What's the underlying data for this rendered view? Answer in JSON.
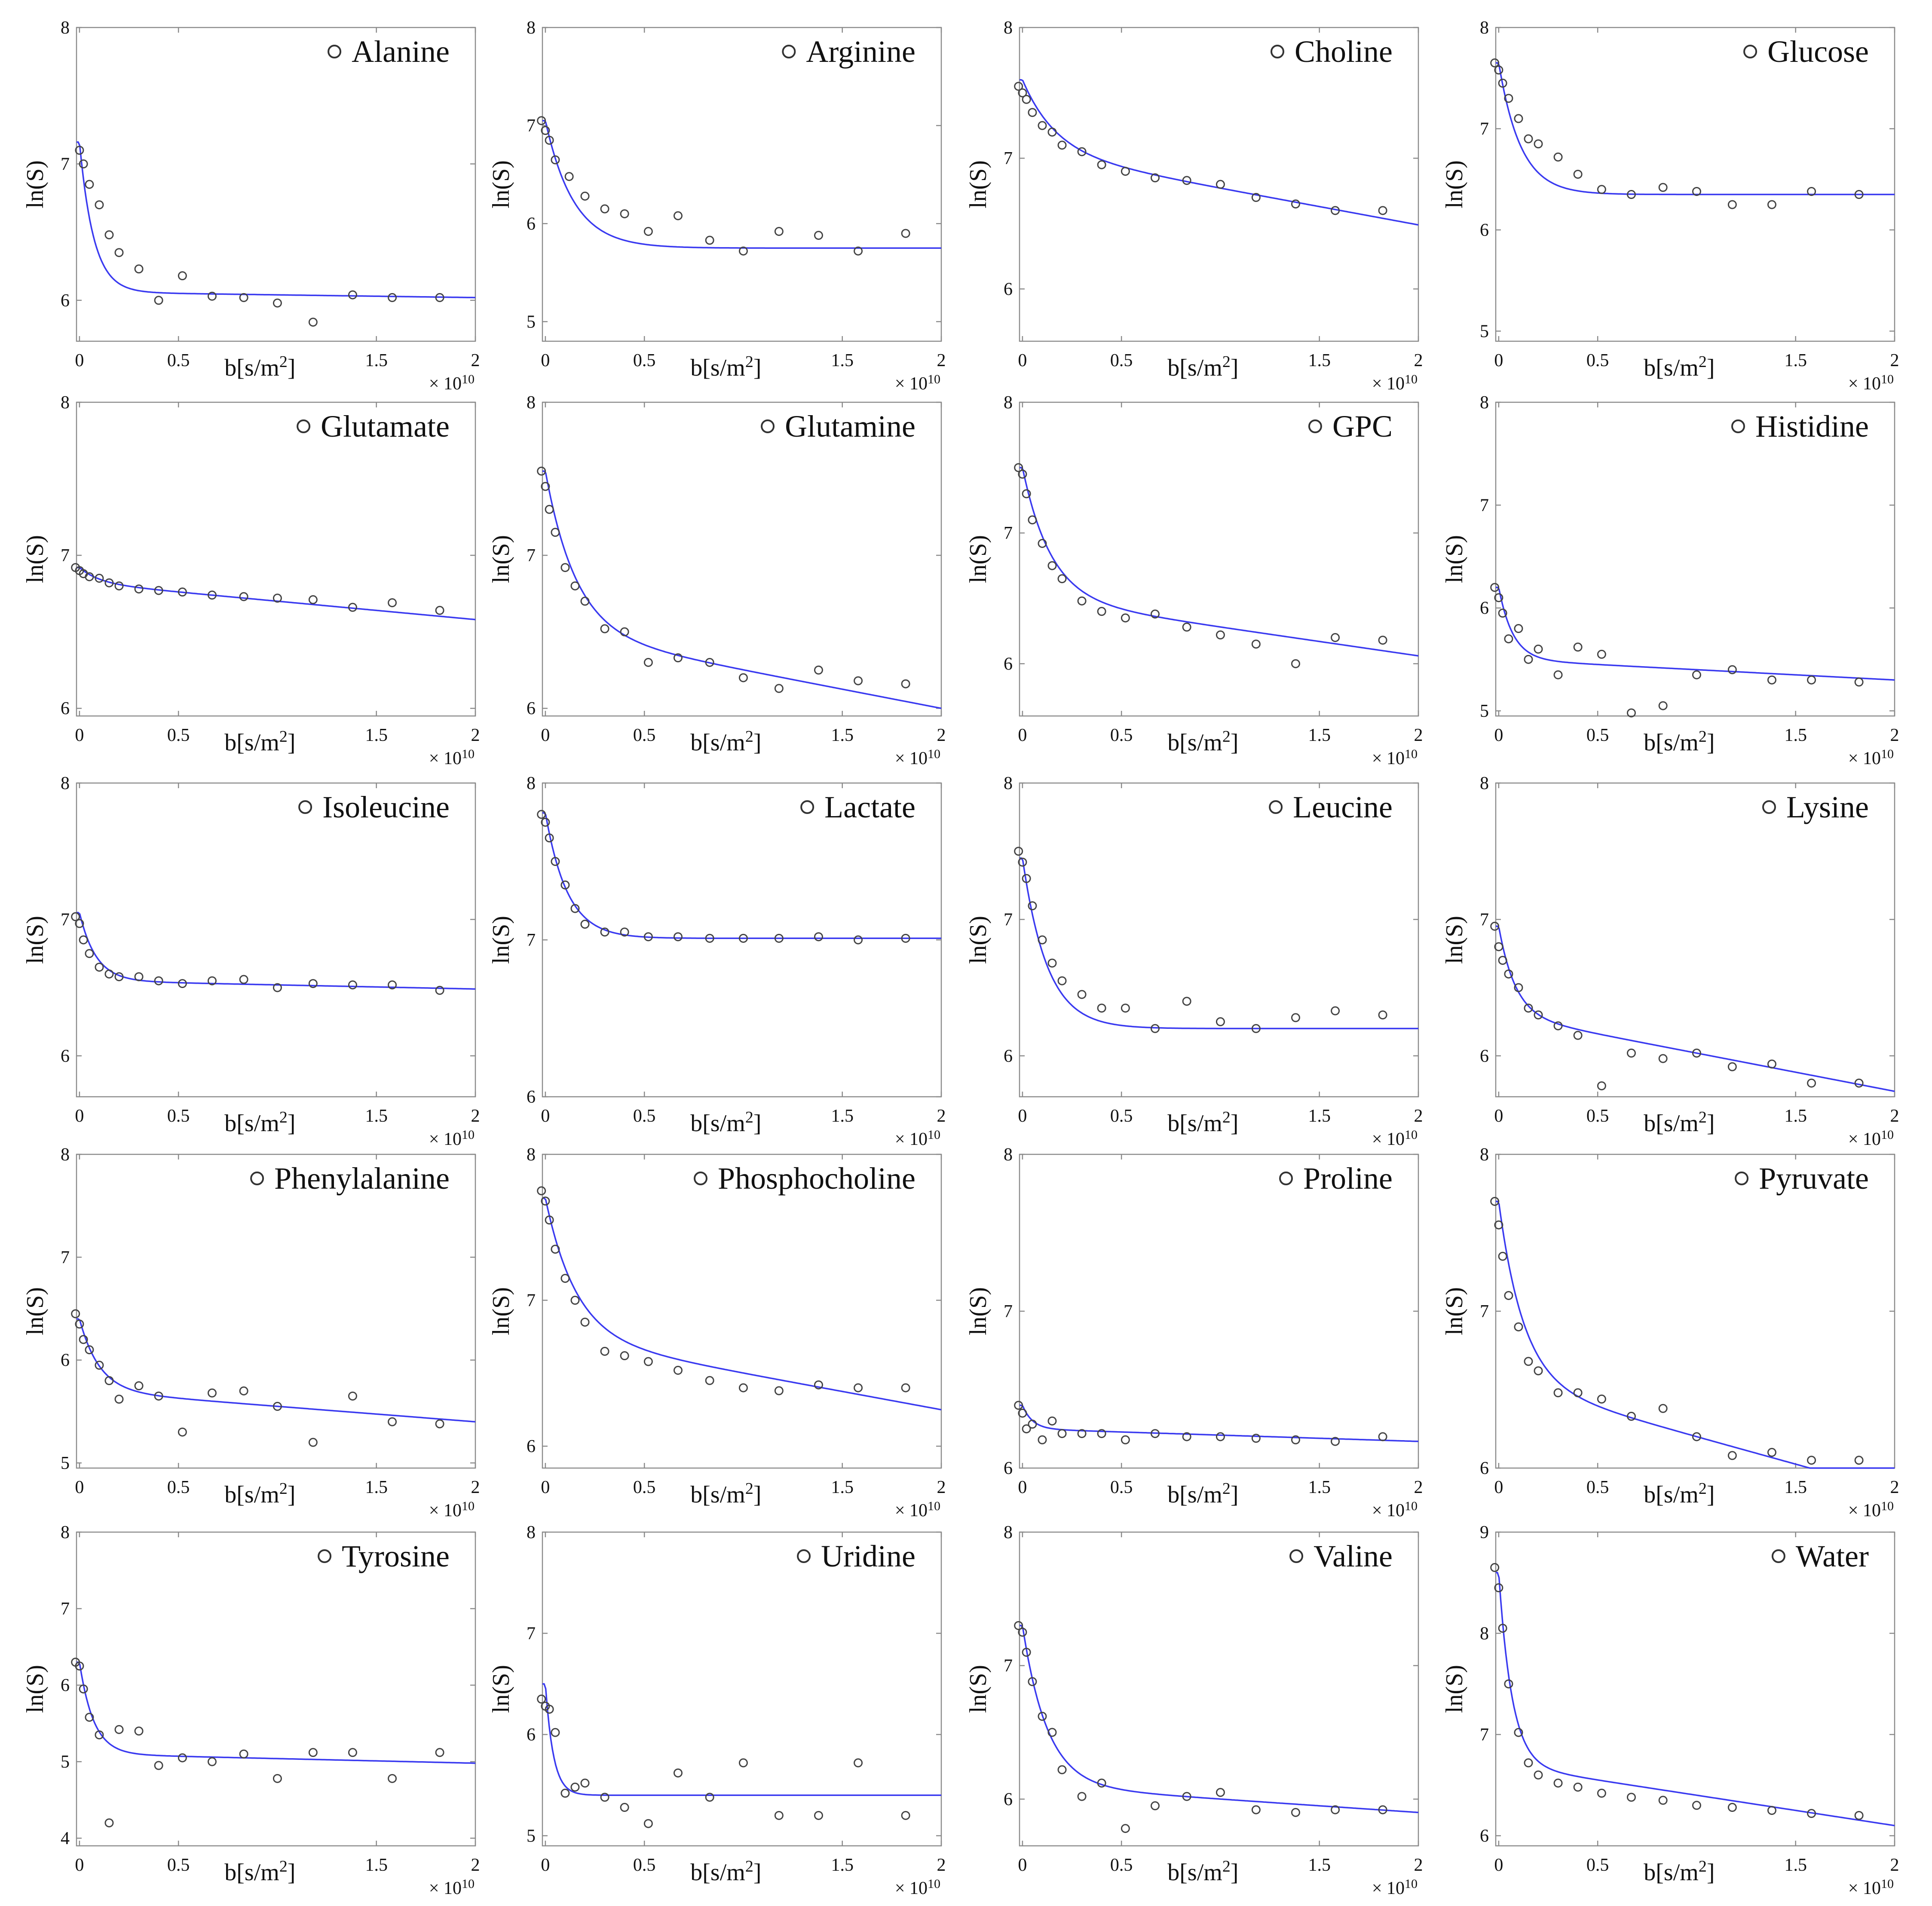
{
  "figure": {
    "xlabel": "b[s/m2]",
    "xlabel_main": "b[s/m",
    "xlabel_sup": "2",
    "xlabel_tail": "]",
    "ylabel": "ln(S)",
    "x_multiplier": "× 10",
    "x_multiplier_exp": "10",
    "x_ticks": [
      "0",
      "0.5",
      "1.5",
      "2"
    ],
    "colors": {
      "fit": "#3a3af0",
      "points": "#444444",
      "frame": "#8a8a8a"
    }
  },
  "chart_data": [
    {
      "type": "scatter",
      "title": "Alanine",
      "ylim": [
        5.7,
        8
      ],
      "yticks": [
        "6",
        "7",
        "8"
      ],
      "fit_model": {
        "a": 1.1,
        "k": 14,
        "c": 7.16,
        "m": 0.02
      },
      "x": [
        0,
        0.02,
        0.05,
        0.1,
        0.15,
        0.2,
        0.3,
        0.4,
        0.52,
        0.67,
        0.83,
        1.0,
        1.18,
        1.38,
        1.58,
        1.82
      ],
      "y": [
        7.1,
        7.0,
        6.85,
        6.7,
        6.48,
        6.35,
        6.23,
        6.0,
        6.18,
        6.03,
        6.02,
        5.98,
        5.84,
        6.04,
        6.02,
        6.02
      ]
    },
    {
      "type": "scatter",
      "title": "Arginine",
      "ylim": [
        4.8,
        8
      ],
      "yticks": [
        "5",
        "6",
        "7",
        "8"
      ],
      "fit_model": {
        "a": 1.3,
        "k": 7,
        "c": 7.05,
        "m": 0
      },
      "x": [
        -0.02,
        0,
        0.02,
        0.05,
        0.12,
        0.2,
        0.3,
        0.4,
        0.52,
        0.67,
        0.83,
        1.0,
        1.18,
        1.38,
        1.58,
        1.82
      ],
      "y": [
        7.05,
        6.95,
        6.85,
        6.65,
        6.48,
        6.28,
        6.15,
        6.1,
        5.92,
        6.08,
        5.83,
        5.72,
        5.92,
        5.88,
        5.72,
        5.9
      ]
    },
    {
      "type": "scatter",
      "title": "Choline",
      "ylim": [
        5.6,
        8
      ],
      "yticks": [
        "6",
        "7",
        "8"
      ],
      "fit_model": {
        "a": 0.55,
        "k": 6,
        "c": 7.6,
        "m": 0.28
      },
      "x": [
        -0.02,
        0,
        0.02,
        0.05,
        0.1,
        0.15,
        0.2,
        0.3,
        0.4,
        0.52,
        0.67,
        0.83,
        1.0,
        1.18,
        1.38,
        1.58,
        1.82
      ],
      "y": [
        7.55,
        7.5,
        7.45,
        7.35,
        7.25,
        7.2,
        7.1,
        7.05,
        6.95,
        6.9,
        6.85,
        6.83,
        6.8,
        6.7,
        6.65,
        6.6,
        6.6
      ]
    },
    {
      "type": "scatter",
      "title": "Glucose",
      "ylim": [
        4.9,
        8
      ],
      "yticks": [
        "5",
        "6",
        "7",
        "8"
      ],
      "fit_model": {
        "a": 1.3,
        "k": 9,
        "c": 7.65,
        "m": 0
      },
      "x": [
        -0.02,
        0,
        0.02,
        0.05,
        0.1,
        0.15,
        0.2,
        0.3,
        0.4,
        0.52,
        0.67,
        0.83,
        1.0,
        1.18,
        1.38,
        1.58,
        1.82
      ],
      "y": [
        7.65,
        7.58,
        7.45,
        7.3,
        7.1,
        6.9,
        6.85,
        6.72,
        6.55,
        6.4,
        6.35,
        6.42,
        6.38,
        6.25,
        6.25,
        6.38,
        6.35
      ]
    },
    {
      "type": "scatter",
      "title": "Glutamate",
      "ylim": [
        5.95,
        8
      ],
      "yticks": [
        "6",
        "7",
        "8"
      ],
      "fit_model": {
        "a": 0.1,
        "k": 10,
        "c": 6.92,
        "m": 0.12
      },
      "x": [
        -0.02,
        0,
        0.02,
        0.05,
        0.1,
        0.15,
        0.2,
        0.3,
        0.4,
        0.52,
        0.67,
        0.83,
        1.0,
        1.18,
        1.38,
        1.58,
        1.82
      ],
      "y": [
        6.92,
        6.9,
        6.88,
        6.86,
        6.85,
        6.82,
        6.8,
        6.78,
        6.77,
        6.76,
        6.74,
        6.73,
        6.72,
        6.71,
        6.66,
        6.69,
        6.64
      ]
    },
    {
      "type": "scatter",
      "title": "Glutamine",
      "ylim": [
        5.95,
        8
      ],
      "yticks": [
        "6",
        "7",
        "8"
      ],
      "fit_model": {
        "a": 1.05,
        "k": 6.5,
        "c": 7.55,
        "m": 0.25
      },
      "x": [
        -0.02,
        0,
        0.02,
        0.05,
        0.1,
        0.15,
        0.2,
        0.3,
        0.4,
        0.52,
        0.67,
        0.83,
        1.0,
        1.18,
        1.38,
        1.58,
        1.82
      ],
      "y": [
        7.55,
        7.45,
        7.3,
        7.15,
        6.92,
        6.8,
        6.7,
        6.52,
        6.5,
        6.3,
        6.33,
        6.3,
        6.2,
        6.13,
        6.25,
        6.18,
        6.16
      ]
    },
    {
      "type": "scatter",
      "title": "GPC",
      "ylim": [
        5.6,
        8
      ],
      "yticks": [
        "6",
        "7",
        "8"
      ],
      "fit_model": {
        "a": 1.0,
        "k": 7,
        "c": 7.5,
        "m": 0.22
      },
      "x": [
        -0.02,
        0,
        0.02,
        0.05,
        0.1,
        0.15,
        0.2,
        0.3,
        0.4,
        0.52,
        0.67,
        0.83,
        1.0,
        1.18,
        1.38,
        1.58,
        1.82
      ],
      "y": [
        7.5,
        7.45,
        7.3,
        7.1,
        6.92,
        6.75,
        6.65,
        6.48,
        6.4,
        6.35,
        6.38,
        6.28,
        6.22,
        6.15,
        6.0,
        6.2,
        6.18
      ]
    },
    {
      "type": "scatter",
      "title": "Histidine",
      "ylim": [
        4.95,
        8
      ],
      "yticks": [
        "5",
        "6",
        "7",
        "8"
      ],
      "fit_model": {
        "a": 0.7,
        "k": 14,
        "c": 6.2,
        "m": 0.1
      },
      "x": [
        -0.02,
        0,
        0.02,
        0.05,
        0.1,
        0.15,
        0.2,
        0.3,
        0.4,
        0.52,
        0.67,
        0.83,
        1.0,
        1.18,
        1.38,
        1.58,
        1.82
      ],
      "y": [
        6.2,
        6.1,
        5.95,
        5.7,
        5.8,
        5.5,
        5.6,
        5.35,
        5.62,
        5.55,
        4.98,
        5.05,
        5.35,
        5.4,
        5.3,
        5.3,
        5.28
      ]
    },
    {
      "type": "scatter",
      "title": "Isoleucine",
      "ylim": [
        5.7,
        8
      ],
      "yticks": [
        "6",
        "7",
        "8"
      ],
      "fit_model": {
        "a": 0.5,
        "k": 12,
        "c": 7.05,
        "m": 0.03
      },
      "x": [
        -0.02,
        0,
        0.02,
        0.05,
        0.1,
        0.15,
        0.2,
        0.3,
        0.4,
        0.52,
        0.67,
        0.83,
        1.0,
        1.18,
        1.38,
        1.58,
        1.82
      ],
      "y": [
        7.02,
        6.97,
        6.85,
        6.75,
        6.65,
        6.6,
        6.58,
        6.58,
        6.55,
        6.53,
        6.55,
        6.56,
        6.5,
        6.53,
        6.52,
        6.52,
        6.48
      ]
    },
    {
      "type": "scatter",
      "title": "Lactate",
      "ylim": [
        6,
        8
      ],
      "yticks": [
        "6",
        "7",
        "8"
      ],
      "fit_model": {
        "a": 0.8,
        "k": 9,
        "c": 7.81,
        "m": 0
      },
      "x": [
        -0.02,
        0,
        0.02,
        0.05,
        0.1,
        0.15,
        0.2,
        0.3,
        0.4,
        0.52,
        0.67,
        0.83,
        1.0,
        1.18,
        1.38,
        1.58,
        1.82
      ],
      "y": [
        7.8,
        7.75,
        7.65,
        7.5,
        7.35,
        7.2,
        7.1,
        7.05,
        7.05,
        7.02,
        7.02,
        7.01,
        7.01,
        7.01,
        7.02,
        7.0,
        7.01
      ]
    },
    {
      "type": "scatter",
      "title": "Leucine",
      "ylim": [
        5.7,
        8
      ],
      "yticks": [
        "6",
        "7",
        "8"
      ],
      "fit_model": {
        "a": 1.25,
        "k": 8,
        "c": 7.45,
        "m": 0
      },
      "x": [
        -0.02,
        0,
        0.02,
        0.05,
        0.1,
        0.15,
        0.2,
        0.3,
        0.4,
        0.52,
        0.67,
        0.83,
        1.0,
        1.18,
        1.38,
        1.58,
        1.82
      ],
      "y": [
        7.5,
        7.42,
        7.3,
        7.1,
        6.85,
        6.68,
        6.55,
        6.45,
        6.35,
        6.35,
        6.2,
        6.4,
        6.25,
        6.2,
        6.28,
        6.33,
        6.3
      ]
    },
    {
      "type": "scatter",
      "title": "Lysine",
      "ylim": [
        5.7,
        8
      ],
      "yticks": [
        "6",
        "7",
        "8"
      ],
      "fit_model": {
        "a": 0.65,
        "k": 12,
        "c": 6.95,
        "m": 0.28
      },
      "x": [
        -0.02,
        0,
        0.02,
        0.05,
        0.1,
        0.15,
        0.2,
        0.3,
        0.4,
        0.52,
        0.67,
        0.83,
        1.0,
        1.18,
        1.38,
        1.58,
        1.82
      ],
      "y": [
        6.95,
        6.8,
        6.7,
        6.6,
        6.5,
        6.35,
        6.3,
        6.22,
        6.15,
        5.78,
        6.02,
        5.98,
        6.02,
        5.92,
        5.94,
        5.8,
        5.8
      ]
    },
    {
      "type": "scatter",
      "title": "Phenylalanine",
      "ylim": [
        4.95,
        8
      ],
      "yticks": [
        "5",
        "6",
        "7",
        "8"
      ],
      "fit_model": {
        "a": 0.7,
        "k": 10,
        "c": 6.4,
        "m": 0.15
      },
      "x": [
        -0.02,
        0,
        0.02,
        0.05,
        0.1,
        0.15,
        0.2,
        0.3,
        0.4,
        0.52,
        0.67,
        0.83,
        1.0,
        1.18,
        1.38,
        1.58,
        1.82
      ],
      "y": [
        6.45,
        6.35,
        6.2,
        6.1,
        5.95,
        5.8,
        5.62,
        5.75,
        5.65,
        5.3,
        5.68,
        5.7,
        5.55,
        5.2,
        5.65,
        5.4,
        5.38
      ]
    },
    {
      "type": "scatter",
      "title": "Phosphocholine",
      "ylim": [
        5.85,
        8
      ],
      "yticks": [
        "6",
        "7",
        "8"
      ],
      "fit_model": {
        "a": 0.95,
        "k": 6.5,
        "c": 7.7,
        "m": 0.25
      },
      "x": [
        -0.02,
        0,
        0.02,
        0.05,
        0.1,
        0.15,
        0.2,
        0.3,
        0.4,
        0.52,
        0.67,
        0.83,
        1.0,
        1.18,
        1.38,
        1.58,
        1.82
      ],
      "y": [
        7.75,
        7.68,
        7.55,
        7.35,
        7.15,
        7.0,
        6.85,
        6.65,
        6.62,
        6.58,
        6.52,
        6.45,
        6.4,
        6.38,
        6.42,
        6.4,
        6.4
      ]
    },
    {
      "type": "scatter",
      "title": "Proline",
      "ylim": [
        6,
        8
      ],
      "yticks": [
        "6",
        "7",
        "8"
      ],
      "fit_model": {
        "a": 0.15,
        "k": 20,
        "c": 6.4,
        "m": 0.04
      },
      "x": [
        -0.02,
        0,
        0.02,
        0.05,
        0.1,
        0.15,
        0.2,
        0.3,
        0.4,
        0.52,
        0.67,
        0.83,
        1.0,
        1.18,
        1.38,
        1.58,
        1.82
      ],
      "y": [
        6.4,
        6.35,
        6.25,
        6.28,
        6.18,
        6.3,
        6.22,
        6.22,
        6.22,
        6.18,
        6.22,
        6.2,
        6.2,
        6.19,
        6.18,
        6.17,
        6.2
      ]
    },
    {
      "type": "scatter",
      "title": "Pyruvate",
      "ylim": [
        6,
        8
      ],
      "yticks": [
        "6",
        "7",
        "8"
      ],
      "fit_model": {
        "a": 1.15,
        "k": 8,
        "c": 7.7,
        "m": 0.35
      },
      "x": [
        -0.02,
        0,
        0.02,
        0.05,
        0.1,
        0.15,
        0.2,
        0.3,
        0.4,
        0.52,
        0.67,
        0.83,
        1.0,
        1.18,
        1.38,
        1.58,
        1.82
      ],
      "y": [
        7.7,
        7.55,
        7.35,
        7.1,
        6.9,
        6.68,
        6.62,
        6.48,
        6.48,
        6.44,
        6.33,
        6.38,
        6.2,
        6.08,
        6.1,
        6.05,
        6.05
      ]
    },
    {
      "type": "scatter",
      "title": "Tyrosine",
      "ylim": [
        3.9,
        8
      ],
      "yticks": [
        "4",
        "5",
        "6",
        "7",
        "8"
      ],
      "fit_model": {
        "a": 1.2,
        "k": 14,
        "c": 6.3,
        "m": 0.06
      },
      "x": [
        -0.02,
        0,
        0.02,
        0.05,
        0.1,
        0.15,
        0.2,
        0.3,
        0.4,
        0.52,
        0.67,
        0.83,
        1.0,
        1.18,
        1.38,
        1.58,
        1.82
      ],
      "y": [
        6.3,
        6.25,
        5.95,
        5.58,
        5.35,
        4.2,
        5.42,
        5.4,
        4.95,
        5.05,
        5.0,
        5.1,
        4.78,
        5.12,
        5.12,
        4.78,
        5.12
      ]
    },
    {
      "type": "scatter",
      "title": "Uridine",
      "ylim": [
        4.9,
        8
      ],
      "yticks": [
        "5",
        "6",
        "7",
        "8"
      ],
      "fit_model": {
        "a": 1.1,
        "k": 25,
        "c": 6.5,
        "m": 0
      },
      "x": [
        -0.02,
        0,
        0.02,
        0.05,
        0.1,
        0.15,
        0.2,
        0.3,
        0.4,
        0.52,
        0.67,
        0.83,
        1.0,
        1.18,
        1.38,
        1.58,
        1.82
      ],
      "y": [
        6.35,
        6.28,
        6.25,
        6.02,
        5.42,
        5.48,
        5.52,
        5.38,
        5.28,
        5.12,
        5.62,
        5.38,
        5.72,
        5.2,
        5.2,
        5.72,
        5.2
      ]
    },
    {
      "type": "scatter",
      "title": "Valine",
      "ylim": [
        5.65,
        8
      ],
      "yticks": [
        "6",
        "7",
        "8"
      ],
      "fit_model": {
        "a": 1.2,
        "k": 8,
        "c": 7.3,
        "m": 0.1
      },
      "x": [
        -0.02,
        0,
        0.02,
        0.05,
        0.1,
        0.15,
        0.2,
        0.3,
        0.4,
        0.52,
        0.67,
        0.83,
        1.0,
        1.18,
        1.38,
        1.58,
        1.82
      ],
      "y": [
        7.3,
        7.25,
        7.1,
        6.88,
        6.62,
        6.5,
        6.22,
        6.02,
        6.12,
        5.78,
        5.95,
        6.02,
        6.05,
        5.92,
        5.9,
        5.92,
        5.92
      ]
    },
    {
      "type": "scatter",
      "title": "Water",
      "ylim": [
        5.9,
        9
      ],
      "yticks": [
        "6",
        "7",
        "8",
        "9"
      ],
      "fit_model": {
        "a": 1.9,
        "k": 15,
        "c": 8.6,
        "m": 0.3
      },
      "x": [
        -0.02,
        0,
        0.02,
        0.05,
        0.1,
        0.15,
        0.2,
        0.3,
        0.4,
        0.52,
        0.67,
        0.83,
        1.0,
        1.18,
        1.38,
        1.58,
        1.82
      ],
      "y": [
        8.65,
        8.45,
        8.05,
        7.5,
        7.02,
        6.72,
        6.6,
        6.52,
        6.48,
        6.42,
        6.38,
        6.35,
        6.3,
        6.28,
        6.25,
        6.22,
        6.2
      ]
    }
  ]
}
